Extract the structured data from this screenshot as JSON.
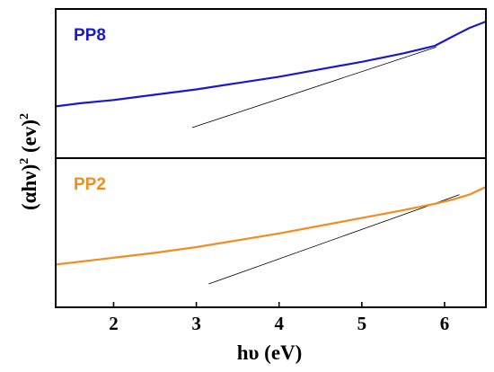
{
  "chart_data": {
    "type": "line",
    "xlabel": "hυ (eV)",
    "ylabel": {
      "part1": "(αhν)",
      "sup1": "2",
      "part2": " (ev)",
      "sup2": "2"
    },
    "xlim": [
      1.3,
      6.5
    ],
    "x_ticks": [
      2,
      3,
      4,
      5,
      6
    ],
    "panels": [
      {
        "label": "PP8",
        "color": "#1a1ac8",
        "ylim": [
          0,
          1
        ],
        "series": [
          {
            "x": [
              1.3,
              1.6,
              2.0,
              2.5,
              3.0,
              3.5,
              4.0,
              4.5,
              5.0,
              5.5,
              5.88,
              6.1,
              6.3,
              6.5
            ],
            "y": [
              0.2,
              0.23,
              0.26,
              0.31,
              0.36,
              0.42,
              0.48,
              0.55,
              0.62,
              0.7,
              0.77,
              0.86,
              0.94,
              1.0
            ]
          }
        ],
        "tangent": {
          "x": [
            2.95,
            5.9
          ],
          "y": [
            0.0,
            0.76
          ]
        }
      },
      {
        "label": "PP2",
        "color": "#f28c1e",
        "ylim": [
          0,
          1
        ],
        "series": [
          {
            "x": [
              1.3,
              1.6,
              2.0,
              2.5,
              3.0,
              3.5,
              4.0,
              4.5,
              5.0,
              5.5,
              5.9,
              6.1,
              6.3,
              6.5
            ],
            "y": [
              0.2,
              0.23,
              0.27,
              0.32,
              0.38,
              0.45,
              0.52,
              0.6,
              0.68,
              0.76,
              0.83,
              0.87,
              0.92,
              1.0
            ]
          }
        ],
        "tangent": {
          "x": [
            3.15,
            6.18
          ],
          "y": [
            0.0,
            0.92
          ]
        }
      }
    ],
    "y_tick_labels": "none",
    "grid": false,
    "legend": "none"
  }
}
